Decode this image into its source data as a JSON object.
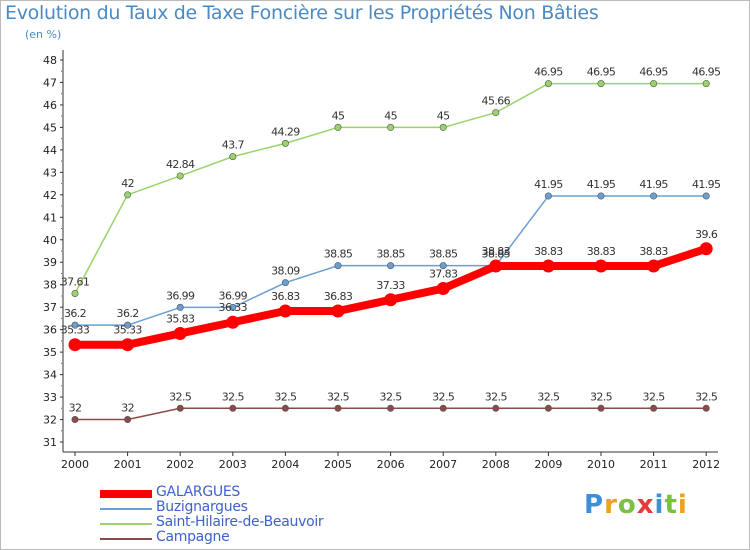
{
  "title": "Evolution du Taux de Taxe Foncière sur les Propriétés Non Bâties",
  "unit": "(en %)",
  "logo": {
    "text": "Proxiti",
    "letters": [
      "P",
      "r",
      "o",
      "x",
      "i",
      "t",
      "i"
    ],
    "colors": [
      "#3f8fd6",
      "#f0a020",
      "#7ac143",
      "#e83a3a",
      "#3f8fd6",
      "#7ac143",
      "#f0a020"
    ]
  },
  "chart_data": {
    "type": "line",
    "x": [
      "2000",
      "2001",
      "2002",
      "2003",
      "2004",
      "2005",
      "2006",
      "2007",
      "2008",
      "2009",
      "2010",
      "2011",
      "2012"
    ],
    "ylim": [
      31,
      48
    ],
    "yticks": [
      31,
      32,
      33,
      34,
      35,
      36,
      37,
      38,
      39,
      40,
      41,
      42,
      43,
      44,
      45,
      46,
      47,
      48
    ],
    "grid": false,
    "legend_position": "bottom-left",
    "series": [
      {
        "name": "GALARGUES",
        "color": "#ff0000",
        "width": 8,
        "values": [
          35.33,
          35.33,
          35.83,
          36.33,
          36.83,
          36.83,
          37.33,
          37.83,
          38.83,
          38.83,
          38.83,
          38.83,
          39.6
        ],
        "labels": [
          "35.33",
          "35.33",
          "35.83",
          "36.33",
          "36.83",
          "36.83",
          "37.33",
          "37.83",
          "38.83",
          "38.83",
          "38.83",
          "38.83",
          "39.6"
        ]
      },
      {
        "name": "Buzignargues",
        "color": "#6b9fd0",
        "width": 1.5,
        "values": [
          36.2,
          36.2,
          36.99,
          36.99,
          38.09,
          38.85,
          38.85,
          38.85,
          38.85,
          41.95,
          41.95,
          41.95,
          41.95
        ],
        "labels": [
          "36.2",
          "36.2",
          "36.99",
          "36.99",
          "38.09",
          "38.85",
          "38.85",
          "38.85",
          "38.85",
          "41.95",
          "41.95",
          "41.95",
          "41.95"
        ]
      },
      {
        "name": "Saint-Hilaire-de-Beauvoir",
        "color": "#9ad36b",
        "width": 1.5,
        "values": [
          37.61,
          42,
          42.84,
          43.7,
          44.29,
          45,
          45,
          45,
          45.66,
          46.95,
          46.95,
          46.95,
          46.95
        ],
        "labels": [
          "37.61",
          "42",
          "42.84",
          "43.7",
          "44.29",
          "45",
          "45",
          "45",
          "45.66",
          "46.95",
          "46.95",
          "46.95",
          "46.95"
        ]
      },
      {
        "name": "Campagne",
        "color": "#8b4a4a",
        "width": 1.5,
        "values": [
          32,
          32,
          32.5,
          32.5,
          32.5,
          32.5,
          32.5,
          32.5,
          32.5,
          32.5,
          32.5,
          32.5,
          32.5
        ],
        "labels": [
          "32",
          "32",
          "32.5",
          "32.5",
          "32.5",
          "32.5",
          "32.5",
          "32.5",
          "32.5",
          "32.5",
          "32.5",
          "32.5",
          "32.5"
        ]
      }
    ]
  }
}
